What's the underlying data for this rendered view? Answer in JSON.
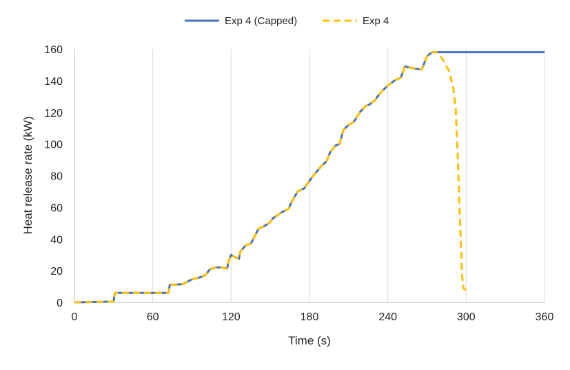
{
  "chart_data": {
    "type": "line",
    "title": "",
    "xlabel": "Time (s)",
    "ylabel": "Heat release rate (kW)",
    "xlim": [
      0,
      360
    ],
    "ylim": [
      0,
      160
    ],
    "xticks": [
      0,
      60,
      120,
      180,
      240,
      300,
      360
    ],
    "yticks": [
      0,
      20,
      40,
      60,
      80,
      100,
      120,
      140,
      160
    ],
    "grid": "vertical",
    "legend_position": "top",
    "series": [
      {
        "name": "Exp 4 (Capped)",
        "color": "#4472C4",
        "style": "solid",
        "x": [
          0,
          30,
          31,
          72,
          73,
          83,
          90,
          97,
          100,
          104,
          108,
          113,
          116,
          117,
          118,
          120,
          122,
          126,
          127,
          131,
          135,
          137,
          141,
          145,
          149,
          152,
          157,
          160,
          164,
          166,
          171,
          176,
          182,
          186,
          189,
          193,
          196,
          200,
          203,
          206,
          210,
          214,
          219,
          223,
          226,
          230,
          234,
          240,
          245,
          250,
          253,
          258,
          262,
          266,
          270,
          274,
          277,
          280,
          290,
          300,
          360
        ],
        "y": [
          0,
          0.5,
          6,
          6,
          11,
          11.5,
          14.5,
          16,
          17,
          21,
          22,
          22,
          21.5,
          21.5,
          26,
          30,
          29,
          27.5,
          32,
          36,
          37,
          40,
          46.5,
          48,
          50,
          53,
          56,
          57.5,
          59,
          63,
          70,
          72,
          79,
          83,
          86,
          89,
          95,
          99,
          100,
          109,
          112,
          114,
          120.5,
          124,
          125,
          127.5,
          132,
          137,
          140,
          142,
          149,
          148,
          147.5,
          147,
          155.5,
          158,
          158,
          158,
          158,
          158,
          158
        ]
      },
      {
        "name": "Exp 4",
        "color": "#FFC000",
        "style": "dashed",
        "x": [
          0,
          30,
          31,
          72,
          73,
          83,
          90,
          97,
          100,
          104,
          108,
          113,
          116,
          117,
          118,
          120,
          122,
          126,
          127,
          131,
          135,
          137,
          141,
          145,
          149,
          152,
          157,
          160,
          164,
          166,
          171,
          176,
          182,
          186,
          189,
          193,
          196,
          200,
          203,
          206,
          210,
          214,
          219,
          223,
          226,
          230,
          234,
          240,
          245,
          250,
          253,
          258,
          262,
          266,
          270,
          274,
          277,
          280,
          283,
          287,
          290,
          292,
          293,
          294,
          295,
          296,
          297,
          298,
          299,
          300
        ],
        "y": [
          0,
          0.5,
          6,
          6,
          11,
          11.5,
          14.5,
          16,
          17,
          21,
          22,
          22,
          21.5,
          21.5,
          26,
          30,
          29,
          27.5,
          32,
          36,
          37,
          40,
          46.5,
          48,
          50,
          53,
          56,
          57.5,
          59,
          63,
          70,
          72,
          79,
          83,
          86,
          89,
          95,
          99,
          100,
          109,
          112,
          114,
          120.5,
          124,
          125,
          127.5,
          132,
          137,
          140,
          142,
          149,
          148,
          147.5,
          147,
          155.5,
          158,
          158,
          156,
          152,
          146,
          136,
          122,
          103,
          82,
          58,
          35,
          16,
          9,
          8,
          8
        ]
      }
    ]
  }
}
